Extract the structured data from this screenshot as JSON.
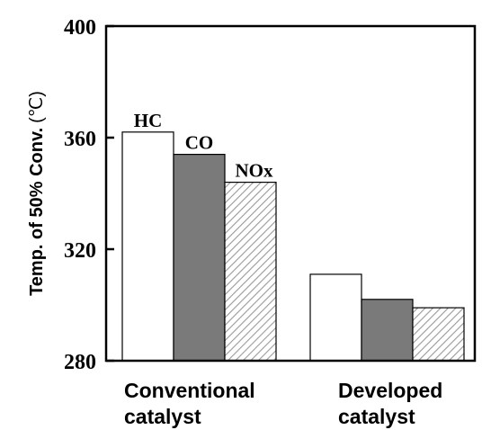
{
  "chart_data": {
    "type": "bar",
    "categories": [
      "Conventional catalyst",
      "Developed catalyst"
    ],
    "category_lines": [
      [
        "Conventional",
        "catalyst"
      ],
      [
        "Developed",
        "catalyst"
      ]
    ],
    "series": [
      {
        "name": "HC",
        "values": [
          362,
          311
        ],
        "color": "#ffffff",
        "pattern": "solid"
      },
      {
        "name": "CO",
        "values": [
          354,
          302
        ],
        "color": "#7a7a7a",
        "pattern": "solid"
      },
      {
        "name": "NOx",
        "values": [
          344,
          299
        ],
        "color": "#ffffff",
        "pattern": "diagonal-hatch"
      }
    ],
    "series_labels_on_first_group": true,
    "ylabel": "Temp. of 50% Conv.",
    "ylabel_unit": "(℃)",
    "ylim": [
      280,
      400
    ],
    "yticks": [
      280,
      320,
      360,
      400
    ],
    "ytick_labels": [
      "280",
      "320",
      "360",
      "400"
    ],
    "grid": false,
    "legend": "none"
  }
}
